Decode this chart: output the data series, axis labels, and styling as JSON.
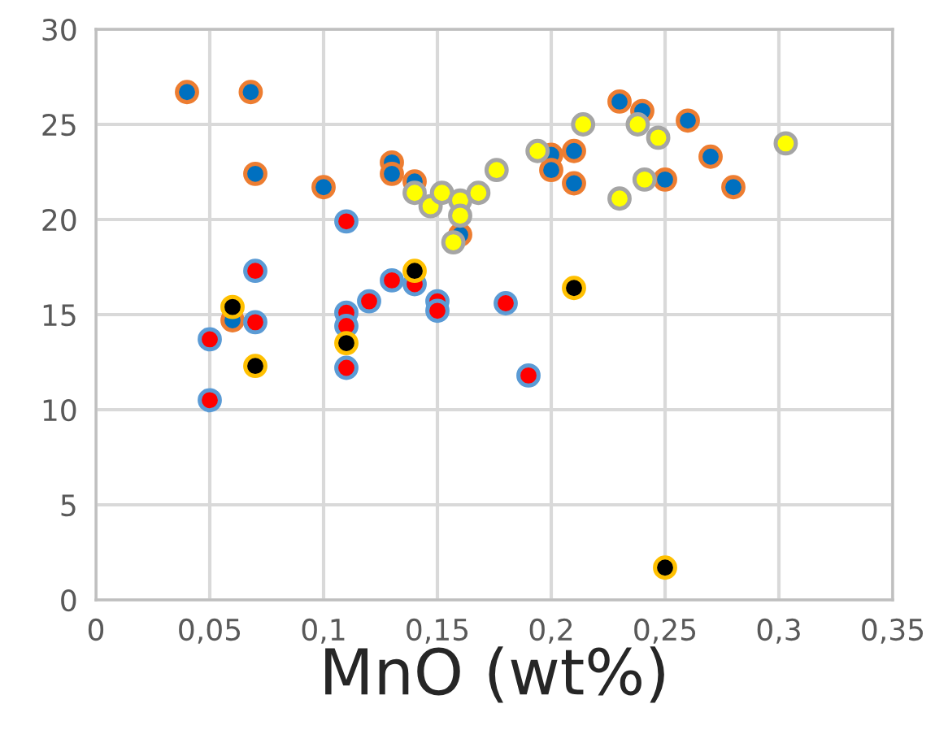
{
  "chart_data": {
    "type": "scatter",
    "xlabel": "MnO (wt%)",
    "xlim": [
      0,
      0.35
    ],
    "xticks": [
      0,
      {
        "value": 0.05,
        "label": "0,05"
      },
      {
        "value": 0.1,
        "label": "0,1"
      },
      {
        "value": 0.15,
        "label": "0,15"
      },
      {
        "value": 0.2,
        "label": "0,2"
      },
      {
        "value": 0.25,
        "label": "0,25"
      },
      {
        "value": 0.3,
        "label": "0,3"
      },
      {
        "value": 0.35,
        "label": "0,35"
      }
    ],
    "ylim": [
      0,
      30
    ],
    "yticks": [
      0,
      5,
      10,
      15,
      20,
      25,
      30
    ],
    "grid": true,
    "marker": "circle",
    "series": [
      {
        "color": "#0070c0",
        "x": [
          0.04,
          0.068,
          0.07,
          0.1,
          0.13,
          0.13,
          0.14,
          0.16,
          0.06,
          0.23,
          0.24,
          0.26,
          0.2,
          0.21,
          0.2,
          0.21,
          0.25,
          0.27,
          0.28
        ],
        "values": [
          26.7,
          26.7,
          22.4,
          21.7,
          23.0,
          22.4,
          22.0,
          19.2,
          14.7,
          26.2,
          25.7,
          25.2,
          23.4,
          23.6,
          22.6,
          21.9,
          22.1,
          23.3,
          21.7
        ]
      },
      {
        "color": "#ff0000",
        "x": [
          0.05,
          0.05,
          0.07,
          0.07,
          0.11,
          0.11,
          0.11,
          0.11,
          0.12,
          0.13,
          0.14,
          0.15,
          0.15,
          0.18,
          0.19
        ],
        "values": [
          13.7,
          10.5,
          17.3,
          14.6,
          19.9,
          15.1,
          14.4,
          12.2,
          15.7,
          16.8,
          16.6,
          15.7,
          15.2,
          15.6,
          11.8
        ]
      },
      {
        "color": "#ffff00",
        "x": [
          0.14,
          0.147,
          0.152,
          0.16,
          0.16,
          0.157,
          0.168,
          0.176,
          0.194,
          0.214,
          0.238,
          0.247,
          0.241,
          0.23,
          0.303
        ],
        "values": [
          21.4,
          20.7,
          21.4,
          21.0,
          20.2,
          18.8,
          21.4,
          22.6,
          23.6,
          25.0,
          25.0,
          24.3,
          22.1,
          21.1,
          24.0
        ]
      },
      {
        "color": "#000000",
        "x": [
          0.06,
          0.07,
          0.11,
          0.14,
          0.21,
          0.25
        ],
        "values": [
          15.4,
          12.3,
          13.5,
          17.3,
          16.4,
          1.7
        ]
      }
    ]
  }
}
